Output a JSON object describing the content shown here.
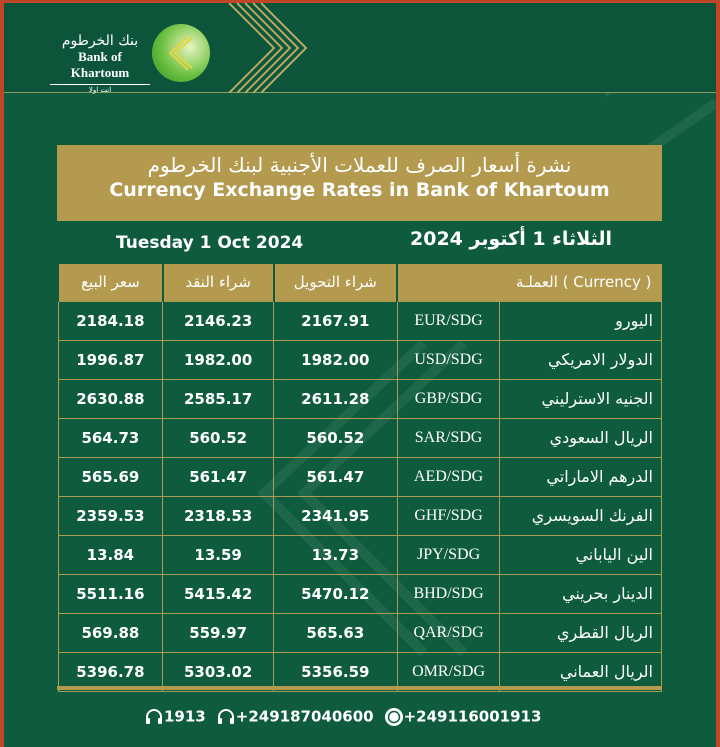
{
  "logo": {
    "arabic": "بنك الخرطوم",
    "english": "Bank of Khartoum",
    "tagline": "انت اولا"
  },
  "title": {
    "arabic": "نشرة أسعار الصرف للعملات الأجنبية لبنك الخرطوم",
    "english": "Currency Exchange Rates in Bank of Khartoum"
  },
  "date": {
    "english": "Tuesday 1 Oct  2024",
    "arabic": "الثلاثاء 1 أكتوبر  2024"
  },
  "table": {
    "headers": {
      "currency": "العملـة ( Currency )",
      "transfer": "شراء التحويل",
      "cash": "شراء النقد",
      "sell": "سعر البيع"
    },
    "rows": [
      {
        "name": "اليورو",
        "code": "EUR/SDG",
        "transfer": "2167.91",
        "cash": "2146.23",
        "sell": "2184.18"
      },
      {
        "name": "الدولار الامريكي",
        "code": "USD/SDG",
        "transfer": "1982.00",
        "cash": "1982.00",
        "sell": "1996.87"
      },
      {
        "name": "الجنيه الاسترليني",
        "code": "GBP/SDG",
        "transfer": "2611.28",
        "cash": "2585.17",
        "sell": "2630.88"
      },
      {
        "name": "الريال السعودي",
        "code": "SAR/SDG",
        "transfer": "560.52",
        "cash": "560.52",
        "sell": "564.73"
      },
      {
        "name": "الدرهم الاماراتي",
        "code": "AED/SDG",
        "transfer": "561.47",
        "cash": "561.47",
        "sell": "565.69"
      },
      {
        "name": "الفرنك السويسري",
        "code": "GHF/SDG",
        "transfer": "2341.95",
        "cash": "2318.53",
        "sell": "2359.53"
      },
      {
        "name": "الين الياباني",
        "code": "JPY/SDG",
        "transfer": "13.73",
        "cash": "13.59",
        "sell": "13.84"
      },
      {
        "name": "الدينار بحريني",
        "code": "BHD/SDG",
        "transfer": "5470.12",
        "cash": "5415.42",
        "sell": "5511.16"
      },
      {
        "name": "الريال القطري",
        "code": "QAR/SDG",
        "transfer": "565.63",
        "cash": "559.97",
        "sell": "569.88"
      },
      {
        "name": "الريال العماني",
        "code": "OMR/SDG",
        "transfer": "5356.59",
        "cash": "5303.02",
        "sell": "5396.78"
      }
    ]
  },
  "footer": {
    "hotline": "1913",
    "phone": "+249187040600",
    "whatsapp": "+249116001913",
    "icons": [
      "headset-icon",
      "headset-icon",
      "whatsapp-icon"
    ]
  },
  "colors": {
    "green": "#0e5b3e",
    "gold": "#b39a4e",
    "border": "#c0462a"
  }
}
